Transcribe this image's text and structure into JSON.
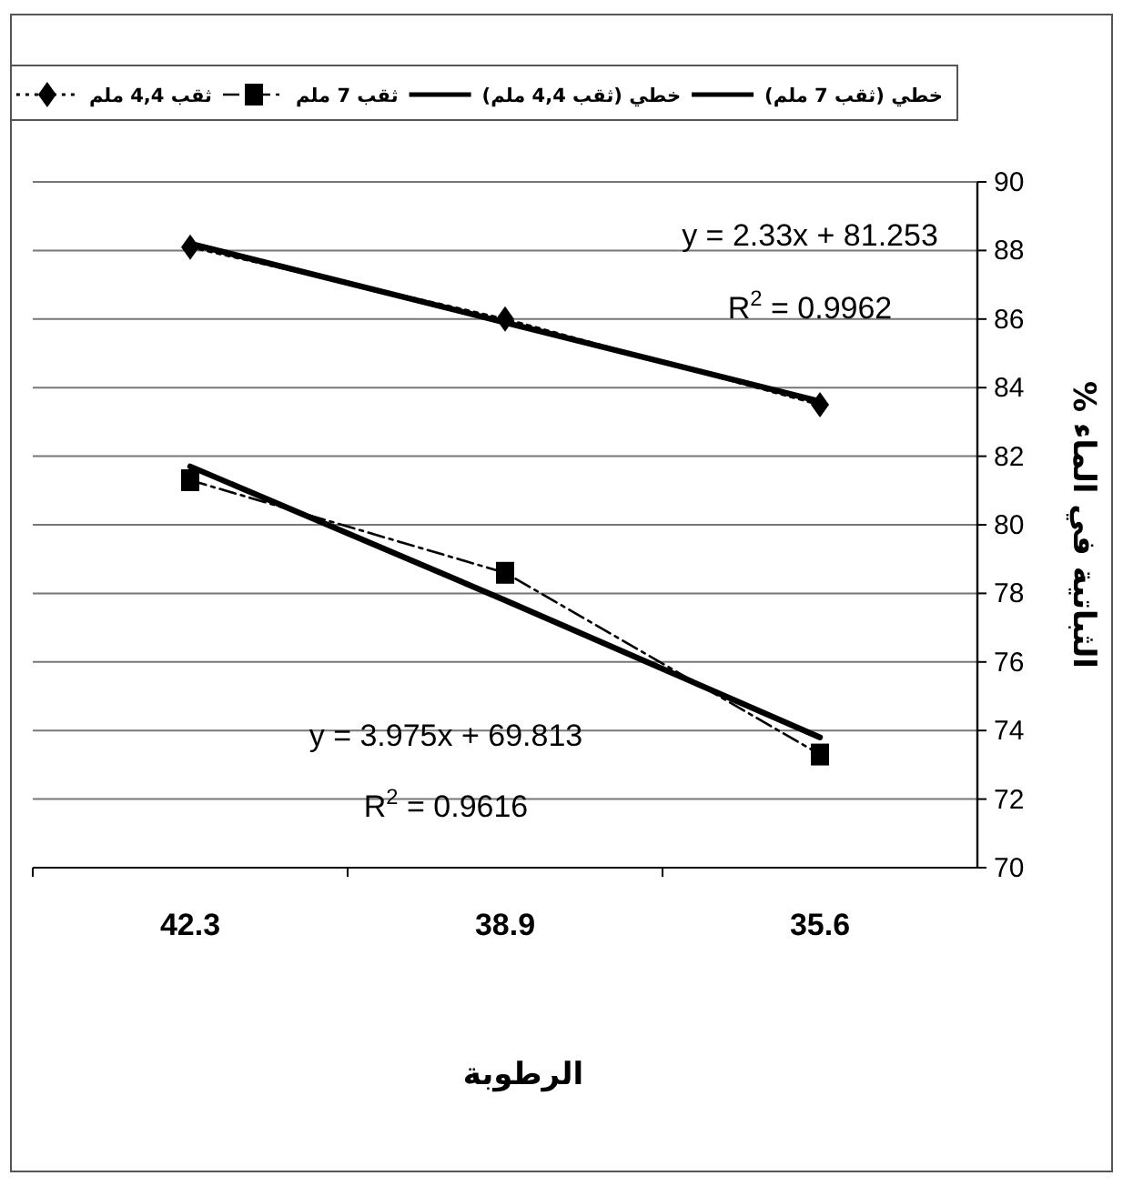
{
  "chart_data": {
    "type": "line",
    "categories": [
      "42.3",
      "38.9",
      "35.6"
    ],
    "xlabel": "الرطوبة",
    "ylabel": "الثباتية في الماء %",
    "ylim": [
      70,
      90
    ],
    "yticks": [
      70,
      72,
      74,
      76,
      78,
      80,
      82,
      84,
      86,
      88,
      90
    ],
    "grid": "y",
    "legend": "top",
    "series": [
      {
        "name": "خطي (ثقب 7 ملم)",
        "color": "#000000",
        "marker": "none",
        "line_style": "solid",
        "values": [
          81.7,
          77.8,
          73.8
        ]
      },
      {
        "name": "خطي (ثقب 4,4 ملم)",
        "color": "#000000",
        "marker": "none",
        "line_style": "solid",
        "values": [
          88.2,
          85.9,
          83.6
        ]
      },
      {
        "name": "ثقب 7 ملم",
        "color": "#000000",
        "marker": "square",
        "line_style": "dashed",
        "values": [
          81.3,
          78.6,
          73.3
        ]
      },
      {
        "name": "ثقب 4,4 ملم",
        "color": "#000000",
        "marker": "diamond",
        "line_style": "dotted",
        "values": [
          88.1,
          86.0,
          83.5
        ]
      }
    ],
    "annotations": [
      "y = 2.33x + 81.253",
      "R$^{2}$ = 0.9962",
      "y = 3.975x + 69.813",
      "R$^{2}$ = 0.9616"
    ]
  }
}
